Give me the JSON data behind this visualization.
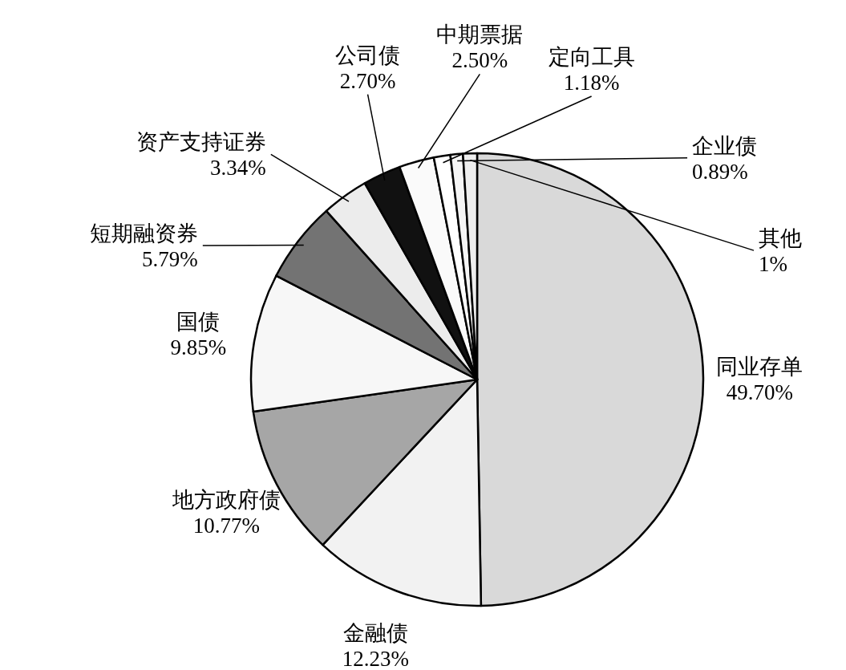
{
  "chart_data": {
    "type": "pie",
    "categories": [
      "同业存单",
      "金融债",
      "地方政府债",
      "国债",
      "短期融资券",
      "资产支持证券",
      "公司债",
      "中期票据",
      "定向工具",
      "企业债",
      "其他"
    ],
    "values": [
      49.7,
      12.23,
      10.77,
      9.85,
      5.79,
      3.34,
      2.7,
      2.5,
      1.18,
      0.89,
      1
    ],
    "value_labels": [
      "49.70%",
      "12.23%",
      "10.77%",
      "9.85%",
      "5.79%",
      "3.34%",
      "2.70%",
      "2.50%",
      "1.18%",
      "0.89%",
      "1%"
    ],
    "colors": [
      "#d9d9d9",
      "#f2f2f2",
      "#a6a6a6",
      "#f7f7f7",
      "#737373",
      "#ececec",
      "#111111",
      "#fafafa",
      "#ffffff",
      "#f5f5f5",
      "#eeeeee"
    ]
  }
}
